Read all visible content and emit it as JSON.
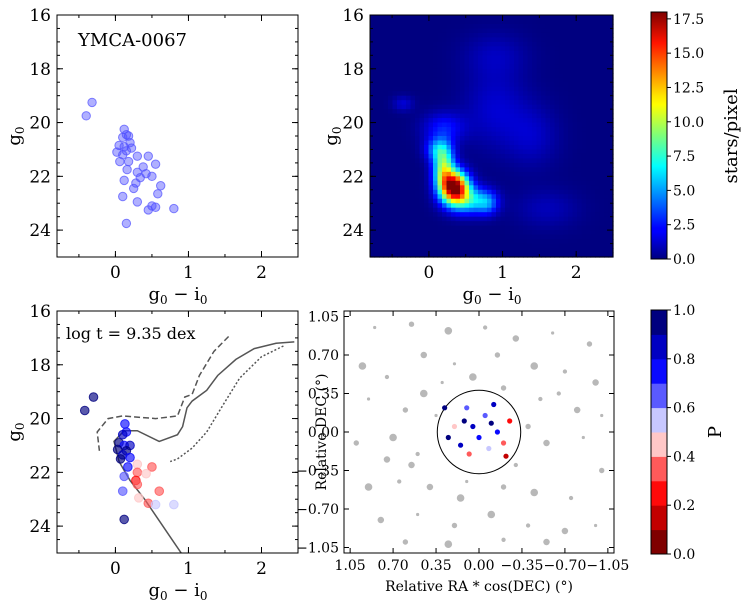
{
  "chart_data": [
    {
      "type": "scatter",
      "panel": "top-left",
      "annotation": "YMCA-0067",
      "xlabel": "g_0 - i_0",
      "ylabel": "g_0",
      "xlim": [
        -0.8,
        2.5
      ],
      "ylim": [
        25,
        16
      ],
      "xticks": [
        "0",
        "1",
        "2"
      ],
      "yticks": [
        "16",
        "18",
        "20",
        "22",
        "24"
      ],
      "color": "#5050ff",
      "points": [
        [
          -0.32,
          19.25
        ],
        [
          -0.4,
          19.75
        ],
        [
          0.12,
          20.25
        ],
        [
          0.15,
          20.45
        ],
        [
          0.1,
          20.55
        ],
        [
          0.18,
          20.5
        ],
        [
          0.2,
          20.75
        ],
        [
          0.05,
          20.85
        ],
        [
          0.12,
          20.9
        ],
        [
          0.22,
          20.95
        ],
        [
          0.02,
          21.1
        ],
        [
          0.15,
          21.05
        ],
        [
          0.1,
          21.2
        ],
        [
          0.3,
          21.25
        ],
        [
          0.45,
          21.25
        ],
        [
          0.06,
          21.45
        ],
        [
          0.18,
          21.45
        ],
        [
          0.55,
          21.55
        ],
        [
          0.38,
          21.65
        ],
        [
          0.16,
          21.75
        ],
        [
          0.3,
          21.85
        ],
        [
          0.42,
          21.9
        ],
        [
          0.5,
          22.0
        ],
        [
          0.34,
          22.05
        ],
        [
          0.12,
          22.15
        ],
        [
          0.28,
          22.25
        ],
        [
          0.62,
          22.35
        ],
        [
          0.25,
          22.45
        ],
        [
          0.58,
          22.65
        ],
        [
          0.1,
          22.75
        ],
        [
          0.3,
          22.95
        ],
        [
          0.5,
          23.1
        ],
        [
          0.45,
          23.25
        ],
        [
          0.8,
          23.2
        ],
        [
          0.55,
          23.15
        ],
        [
          0.15,
          23.75
        ]
      ]
    },
    {
      "type": "heatmap",
      "panel": "top-right",
      "xlabel": "g_0 - i_0",
      "ylabel": "g_0",
      "xlim": [
        -0.8,
        2.5
      ],
      "ylim": [
        25,
        16
      ],
      "xticks": [
        "0",
        "1",
        "2"
      ],
      "yticks": [
        "16",
        "18",
        "20",
        "22",
        "24"
      ],
      "colorbar": {
        "label": "stars/pixel",
        "range": [
          0,
          18
        ],
        "ticks": [
          "0.0",
          "2.5",
          "5.0",
          "7.5",
          "10.0",
          "12.5",
          "15.0",
          "17.5"
        ],
        "colormap": "jet"
      },
      "blobs": [
        {
          "x": 0.35,
          "y": 22.4,
          "sx": 0.13,
          "sy": 0.4,
          "peak": 17.5
        },
        {
          "x": 0.2,
          "y": 21.7,
          "sx": 0.1,
          "sy": 0.55,
          "peak": 9
        },
        {
          "x": 0.55,
          "y": 22.9,
          "sx": 0.2,
          "sy": 0.35,
          "peak": 6
        },
        {
          "x": 0.12,
          "y": 21.0,
          "sx": 0.12,
          "sy": 0.3,
          "peak": 4
        },
        {
          "x": 0.8,
          "y": 23.0,
          "sx": 0.1,
          "sy": 0.3,
          "peak": 3
        },
        {
          "x": 0.2,
          "y": 20.2,
          "sx": 0.2,
          "sy": 0.4,
          "peak": 2.5
        },
        {
          "x": -0.35,
          "y": 19.3,
          "sx": 0.1,
          "sy": 0.2,
          "peak": 1.5
        },
        {
          "x": 0.9,
          "y": 19.5,
          "sx": 0.3,
          "sy": 1.0,
          "peak": 1.4
        },
        {
          "x": 1.4,
          "y": 20.5,
          "sx": 0.25,
          "sy": 0.8,
          "peak": 1.2
        },
        {
          "x": 0.9,
          "y": 17.5,
          "sx": 0.3,
          "sy": 0.6,
          "peak": 1.0
        },
        {
          "x": 1.6,
          "y": 23.2,
          "sx": 0.3,
          "sy": 0.5,
          "peak": 1.0
        }
      ]
    },
    {
      "type": "scatter",
      "panel": "bottom-left",
      "annotation": "log t = 9.35 dex",
      "xlabel": "g_0 - i_0",
      "ylabel": "g_0",
      "xlim": [
        -0.8,
        2.5
      ],
      "ylim": [
        25,
        16
      ],
      "xticks": [
        "0",
        "1",
        "2"
      ],
      "yticks": [
        "16",
        "18",
        "20",
        "22",
        "24"
      ],
      "isochrones": [
        {
          "style": "solid",
          "points": [
            [
              2.45,
              17.15
            ],
            [
              2.2,
              17.2
            ],
            [
              1.9,
              17.4
            ],
            [
              1.65,
              17.8
            ],
            [
              1.4,
              18.4
            ],
            [
              1.25,
              18.95
            ],
            [
              1.05,
              19.35
            ],
            [
              0.98,
              19.6
            ],
            [
              0.92,
              20.3
            ],
            [
              0.85,
              20.6
            ],
            [
              0.6,
              20.85
            ],
            [
              0.3,
              20.45
            ],
            [
              0.12,
              20.45
            ],
            [
              -0.02,
              20.85
            ],
            [
              0.05,
              21.6
            ],
            [
              0.2,
              22.3
            ],
            [
              0.4,
              23.0
            ],
            [
              0.6,
              23.8
            ],
            [
              0.8,
              24.6
            ],
            [
              0.9,
              25.0
            ]
          ]
        },
        {
          "style": "dashed",
          "points": [
            [
              1.55,
              16.95
            ],
            [
              1.35,
              17.5
            ],
            [
              1.15,
              18.4
            ],
            [
              1.05,
              19.1
            ],
            [
              0.95,
              19.2
            ],
            [
              0.85,
              19.9
            ],
            [
              0.55,
              20.0
            ],
            [
              0.1,
              19.9
            ],
            [
              -0.1,
              20.0
            ],
            [
              -0.25,
              20.5
            ],
            [
              -0.22,
              21.2
            ]
          ]
        },
        {
          "style": "dotted",
          "points": [
            [
              2.3,
              17.3
            ],
            [
              2.0,
              17.7
            ],
            [
              1.7,
              18.5
            ],
            [
              1.45,
              19.6
            ],
            [
              1.25,
              20.5
            ],
            [
              1.05,
              21.1
            ],
            [
              0.85,
              21.5
            ],
            [
              0.75,
              21.6
            ]
          ]
        }
      ],
      "points": [
        {
          "x": -0.3,
          "y": 19.2,
          "p": 0.95
        },
        {
          "x": -0.42,
          "y": 19.7,
          "p": 0.9
        },
        {
          "x": 0.13,
          "y": 20.2,
          "p": 0.75
        },
        {
          "x": 0.15,
          "y": 20.5,
          "p": 0.7
        },
        {
          "x": 0.1,
          "y": 20.6,
          "p": 0.85
        },
        {
          "x": 0.05,
          "y": 20.9,
          "p": 0.95
        },
        {
          "x": 0.12,
          "y": 21.0,
          "p": 0.7
        },
        {
          "x": 0.2,
          "y": 21.0,
          "p": 0.85
        },
        {
          "x": 0.03,
          "y": 21.15,
          "p": 0.9
        },
        {
          "x": 0.15,
          "y": 21.2,
          "p": 0.95
        },
        {
          "x": 0.1,
          "y": 21.35,
          "p": 0.8
        },
        {
          "x": 0.07,
          "y": 21.5,
          "p": 0.9
        },
        {
          "x": 0.2,
          "y": 21.45,
          "p": 0.75
        },
        {
          "x": 0.3,
          "y": 21.7,
          "p": 0.45
        },
        {
          "x": 0.5,
          "y": 21.8,
          "p": 0.3
        },
        {
          "x": 0.17,
          "y": 21.8,
          "p": 0.7
        },
        {
          "x": 0.3,
          "y": 22.0,
          "p": 0.35
        },
        {
          "x": 0.42,
          "y": 22.05,
          "p": 0.4
        },
        {
          "x": 0.12,
          "y": 22.15,
          "p": 0.6
        },
        {
          "x": 0.28,
          "y": 22.3,
          "p": 0.25
        },
        {
          "x": 0.3,
          "y": 22.45,
          "p": 0.3
        },
        {
          "x": 0.6,
          "y": 22.7,
          "p": 0.35
        },
        {
          "x": 0.1,
          "y": 22.7,
          "p": 0.65
        },
        {
          "x": 0.32,
          "y": 22.95,
          "p": 0.45
        },
        {
          "x": 0.45,
          "y": 23.15,
          "p": 0.3
        },
        {
          "x": 0.55,
          "y": 23.2,
          "p": 0.5
        },
        {
          "x": 0.8,
          "y": 23.2,
          "p": 0.55
        },
        {
          "x": 0.12,
          "y": 23.75,
          "p": 0.9
        }
      ]
    },
    {
      "type": "scatter",
      "panel": "bottom-right",
      "xlabel": "Relative RA * cos(DEC) (°)",
      "ylabel": "Relative DEC (°)",
      "xlim": [
        1.1,
        -1.1
      ],
      "ylim": [
        -1.1,
        1.1
      ],
      "xticks": [
        "1.05",
        "0.70",
        "0.35",
        "0.00",
        "−0.35",
        "−0.70",
        "−1.05"
      ],
      "yticks": [
        "1.05",
        "0.70",
        "0.35",
        "0.00",
        "−0.35",
        "−0.70",
        "−1.05"
      ],
      "circle": {
        "center": [
          0,
          0
        ],
        "radius": 0.34
      },
      "colorbar": {
        "label": "P",
        "range": [
          0,
          1
        ],
        "ticks": [
          "0.0",
          "0.2",
          "0.4",
          "0.6",
          "0.8",
          "1.0"
        ],
        "colormap": "seismic_r (10 bins)"
      },
      "field_stars": [
        [
          0.85,
          0.95
        ],
        [
          0.55,
          0.98
        ],
        [
          0.25,
          0.92
        ],
        [
          -0.05,
          0.95
        ],
        [
          -0.3,
          0.85
        ],
        [
          -0.6,
          0.9
        ],
        [
          -0.9,
          0.8
        ],
        [
          0.95,
          0.6
        ],
        [
          0.75,
          0.5
        ],
        [
          0.45,
          0.7
        ],
        [
          0.2,
          0.62
        ],
        [
          -0.15,
          0.7
        ],
        [
          -0.45,
          0.6
        ],
        [
          -0.7,
          0.55
        ],
        [
          -0.95,
          0.45
        ],
        [
          0.9,
          0.3
        ],
        [
          0.6,
          0.2
        ],
        [
          0.45,
          0.35
        ],
        [
          -0.5,
          0.3
        ],
        [
          -0.8,
          0.2
        ],
        [
          -1.0,
          0.15
        ],
        [
          1.0,
          -0.1
        ],
        [
          0.7,
          -0.05
        ],
        [
          0.5,
          -0.2
        ],
        [
          -0.55,
          -0.1
        ],
        [
          -0.85,
          -0.05
        ],
        [
          -1.0,
          -0.35
        ],
        [
          0.9,
          -0.5
        ],
        [
          0.65,
          -0.45
        ],
        [
          0.4,
          -0.5
        ],
        [
          0.1,
          -0.45
        ],
        [
          -0.2,
          -0.5
        ],
        [
          -0.45,
          -0.55
        ],
        [
          -0.75,
          -0.6
        ],
        [
          0.8,
          -0.8
        ],
        [
          0.5,
          -0.75
        ],
        [
          0.2,
          -0.85
        ],
        [
          -0.1,
          -0.75
        ],
        [
          -0.4,
          -0.85
        ],
        [
          -0.7,
          -0.9
        ],
        [
          -0.95,
          -0.85
        ],
        [
          0.6,
          -1.0
        ],
        [
          0.25,
          -1.02
        ],
        [
          -0.2,
          -0.98
        ],
        [
          -0.55,
          -1.0
        ],
        [
          0.35,
          0.15
        ],
        [
          -0.4,
          0.05
        ],
        [
          0.15,
          -0.6
        ],
        [
          -0.3,
          -0.3
        ],
        [
          0.55,
          -0.3
        ],
        [
          0.3,
          0.45
        ],
        [
          -0.2,
          0.4
        ],
        [
          0.05,
          0.5
        ],
        [
          -0.65,
          0.35
        ],
        [
          0.75,
          -0.25
        ]
      ],
      "members": [
        {
          "x": 0.12,
          "y": 0.1,
          "p": 0.95
        },
        {
          "x": 0.05,
          "y": 0.05,
          "p": 0.85
        },
        {
          "x": -0.1,
          "y": 0.08,
          "p": 0.9
        },
        {
          "x": -0.15,
          "y": 0.0,
          "p": 0.7
        },
        {
          "x": 0.0,
          "y": -0.05,
          "p": 0.75
        },
        {
          "x": 0.15,
          "y": -0.12,
          "p": 0.8
        },
        {
          "x": -0.05,
          "y": 0.15,
          "p": 0.6
        },
        {
          "x": 0.2,
          "y": 0.05,
          "p": 0.45
        },
        {
          "x": -0.2,
          "y": -0.1,
          "p": 0.35
        },
        {
          "x": 0.08,
          "y": -0.2,
          "p": 0.3
        },
        {
          "x": -0.08,
          "y": -0.15,
          "p": 0.55
        },
        {
          "x": 0.25,
          "y": -0.05,
          "p": 0.9
        },
        {
          "x": -0.25,
          "y": 0.1,
          "p": 0.25
        },
        {
          "x": 0.1,
          "y": 0.22,
          "p": 0.65
        },
        {
          "x": -0.12,
          "y": 0.25,
          "p": 0.85
        },
        {
          "x": 0.28,
          "y": 0.22,
          "p": 0.95
        },
        {
          "x": -0.22,
          "y": -0.22,
          "p": 0.15
        }
      ]
    }
  ],
  "axis_labels": {
    "g0": "g",
    "g0_sub": "0",
    "color_g": "g",
    "color_sub1": "0",
    "color_minus": " − i",
    "color_sub2": "0"
  }
}
